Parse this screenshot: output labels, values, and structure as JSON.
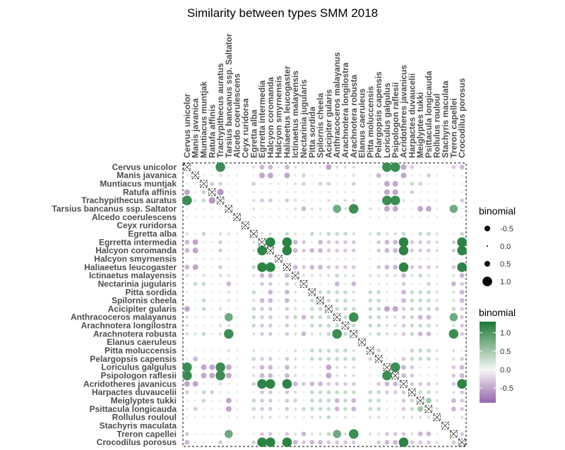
{
  "chart_data": {
    "type": "heatmap",
    "title": "Similarity between types SMM 2018",
    "species": [
      "Cervus unicolor",
      "Manis javanica",
      "Muntiacus muntjak",
      "Ratufa affinis",
      "Trachypithecus auratus",
      "Tarsius bancanus ssp. Saltator",
      "Alcedo coerulescens",
      "Ceyx ruridorsa",
      "Egretta alba",
      "Egrretta intermedia",
      "Halcyon coromanda",
      "Halcyon smyrnensis",
      "Haliaeetus leucogaster",
      "Ictinaetus malayensis",
      "Nectarinia jugularis",
      "Pitta sordida",
      "Spilornis cheela",
      "Acicipiter gularis",
      "Anthracoceros malayanus",
      "Arachnotera longilostra",
      "Arachnotera robusta",
      "Elanus caeruleus",
      "Pitta moluccensis",
      "Pelargopsis capensis",
      "Loriculus galgulus",
      "Psipologon raflesii",
      "Acridotheres javanicus",
      "Harpactes duvaucelii",
      "Meiglyptes tukki",
      "Psittacula longicauda",
      "Rollulus rouloul",
      "Stachyris maculata",
      "Treron capellei",
      "Crocodilus porosus"
    ],
    "values": [
      [
        null,
        0.1,
        0.1,
        0.1,
        1.1,
        0.1,
        0.1,
        0,
        -0.2,
        -0.4,
        -0.4,
        -0.1,
        -0.4,
        -0.2,
        0.1,
        -0.1,
        0.1,
        -0.5,
        -0.2,
        -0.2,
        -0.2,
        0,
        0.1,
        -0.1,
        1.1,
        1.1,
        -0.5,
        -0.3,
        0.1,
        -0.1,
        -0.1,
        0,
        -0.3,
        -0.4
      ],
      [
        0.1,
        null,
        0.1,
        0.1,
        0.2,
        0.1,
        0.1,
        0,
        0.1,
        -0.5,
        -0.5,
        0.1,
        -0.5,
        0.1,
        0.3,
        0.1,
        0.1,
        0.1,
        -0.1,
        0.1,
        0.2,
        0,
        0.1,
        -0.4,
        0.1,
        0.1,
        -0.5,
        0.1,
        0.1,
        -0.3,
        0.1,
        0,
        0.1,
        -0.1
      ],
      [
        0.1,
        0.1,
        null,
        -0.3,
        0.3,
        0.1,
        0.1,
        0,
        0.3,
        0.1,
        0.1,
        0.1,
        0.1,
        0.2,
        0.3,
        0.1,
        0.3,
        0.3,
        0.1,
        0.1,
        0.3,
        0,
        0.1,
        0.1,
        -0.5,
        -0.5,
        0.1,
        0.3,
        0.3,
        0.1,
        0.1,
        0,
        0.1,
        0.1
      ],
      [
        -0.5,
        0.1,
        -0.3,
        null,
        -0.6,
        0.1,
        0.1,
        0,
        0.1,
        0.1,
        0.1,
        0.1,
        0.1,
        0.1,
        0.1,
        0.1,
        0.1,
        -0.1,
        0.1,
        0.1,
        0.1,
        0,
        0.1,
        0.1,
        -0.5,
        -0.5,
        0.1,
        -0.3,
        0.1,
        0.1,
        0.1,
        0,
        0.1,
        0.1
      ],
      [
        1.1,
        0.2,
        0.3,
        -0.6,
        null,
        -0.1,
        0.1,
        0,
        -0.2,
        -0.3,
        -0.3,
        0.1,
        -0.3,
        -0.2,
        0.1,
        -0.1,
        0.1,
        -0.2,
        -0.1,
        -0.2,
        -0.2,
        0,
        0.1,
        -0.1,
        1.1,
        1.1,
        -0.2,
        -0.1,
        0.1,
        -0.1,
        -0.1,
        0,
        -0.1,
        -0.3
      ],
      [
        0.1,
        0.1,
        0.1,
        0.1,
        -0.1,
        null,
        -0.1,
        0,
        0.2,
        0.1,
        0.1,
        0.1,
        0.1,
        0.2,
        -0.4,
        0.2,
        0.2,
        0.1,
        0.8,
        0.2,
        1.1,
        0,
        0.2,
        0.1,
        -0.5,
        -0.5,
        0.1,
        0.1,
        -0.5,
        -0.5,
        0.1,
        0,
        0.8,
        0.1
      ],
      [
        0.1,
        0.1,
        0.1,
        0.1,
        0.1,
        -0.1,
        null,
        0,
        0.1,
        0.1,
        0.1,
        0.1,
        0.1,
        0.1,
        0.1,
        0.1,
        0.1,
        0.1,
        0.1,
        0.1,
        0.1,
        0,
        0.1,
        0.1,
        0.1,
        0.1,
        0.1,
        0.1,
        0.1,
        0.1,
        0.1,
        0,
        0.1,
        0.1
      ],
      [
        0,
        0,
        0,
        0,
        0,
        0,
        0,
        null,
        0,
        0,
        0,
        0,
        0,
        0,
        0,
        0,
        0,
        0,
        0,
        0,
        0,
        0,
        0,
        0,
        0,
        0,
        0,
        0,
        0,
        0,
        0,
        0,
        0,
        0
      ],
      [
        -0.2,
        0.1,
        0.3,
        0.1,
        -0.2,
        0.2,
        0.1,
        0,
        null,
        0.2,
        0.2,
        0.1,
        0.3,
        0.2,
        0.1,
        0.3,
        0.2,
        0.3,
        0.3,
        0.3,
        0.2,
        0,
        0.2,
        0.3,
        -0.2,
        -0.2,
        0.3,
        0.1,
        0.3,
        0.3,
        0.2,
        0,
        0.1,
        0.3
      ],
      [
        -0.4,
        -0.5,
        0.1,
        0.1,
        -0.3,
        0.1,
        0.1,
        0,
        0.2,
        null,
        1.2,
        0.1,
        1.2,
        -0.4,
        -0.3,
        0.1,
        -0.4,
        -0.3,
        -0.3,
        -0.3,
        -0.3,
        0,
        0.1,
        -0.3,
        -0.4,
        -0.4,
        1.2,
        -0.3,
        -0.3,
        -0.3,
        -0.2,
        0,
        -0.3,
        1.2
      ],
      [
        -0.4,
        -0.5,
        0.1,
        0.1,
        -0.3,
        0.1,
        0.1,
        0,
        0.2,
        1.2,
        null,
        0.1,
        1.2,
        -0.4,
        -0.3,
        -0.4,
        -0.4,
        -0.3,
        -0.3,
        -0.3,
        -0.3,
        0,
        0.1,
        -0.3,
        -0.4,
        -0.4,
        1.2,
        -0.3,
        -0.3,
        -0.3,
        -0.2,
        0,
        -0.3,
        1.2
      ],
      [
        -0.1,
        0.1,
        0.1,
        0.1,
        0.1,
        0.1,
        0.1,
        0,
        0.1,
        0.1,
        0.1,
        null,
        0.1,
        0.1,
        0.1,
        0.1,
        0.1,
        0.1,
        0.1,
        0.1,
        0.1,
        0,
        0.1,
        0.1,
        0.1,
        0.1,
        0.1,
        0.1,
        0.1,
        0.1,
        0.1,
        0,
        0.1,
        0.1
      ],
      [
        -0.4,
        -0.5,
        0.1,
        0.1,
        -0.3,
        0.1,
        0.1,
        0,
        0.3,
        1.2,
        1.2,
        0.1,
        null,
        -0.4,
        -0.3,
        -0.4,
        -0.4,
        -0.3,
        -0.3,
        -0.3,
        -0.3,
        0,
        0.1,
        -0.3,
        -0.4,
        -0.4,
        1.2,
        -0.3,
        -0.3,
        -0.3,
        -0.2,
        0,
        -0.3,
        1.2
      ],
      [
        -0.2,
        0.1,
        0.2,
        0.1,
        -0.2,
        0.2,
        0.1,
        0,
        0.2,
        -0.4,
        -0.4,
        0.1,
        -0.4,
        null,
        0.2,
        0.2,
        0.2,
        0.2,
        0.3,
        0.2,
        0.2,
        0,
        0.2,
        0.2,
        -0.2,
        -0.2,
        -0.4,
        0.2,
        0.3,
        0.2,
        0.1,
        0,
        0.2,
        -0.4
      ],
      [
        0.1,
        0.3,
        0.3,
        0.1,
        0.1,
        -0.4,
        0.1,
        0,
        0.1,
        -0.3,
        -0.3,
        0.1,
        -0.3,
        0.2,
        null,
        0.1,
        0.1,
        0.1,
        -0.4,
        0.1,
        -0.4,
        0,
        0.1,
        0.1,
        0.1,
        0.1,
        -0.3,
        0.1,
        0.1,
        0.3,
        0.1,
        0,
        -0.4,
        -0.3
      ],
      [
        -0.1,
        0.1,
        0.1,
        0.1,
        -0.1,
        0.2,
        0.1,
        0,
        0.3,
        0.1,
        -0.4,
        0.1,
        -0.4,
        0.2,
        0.1,
        null,
        0.3,
        0.3,
        0.3,
        0.3,
        0.2,
        0,
        0.3,
        0.3,
        -0.1,
        -0.1,
        -0.4,
        0.3,
        0.3,
        0.3,
        0.2,
        0,
        0.2,
        -0.4
      ],
      [
        0.1,
        0.1,
        0.3,
        0.1,
        0.1,
        0.2,
        0.1,
        0,
        0.2,
        -0.4,
        -0.4,
        0.1,
        -0.4,
        0.2,
        0.1,
        0.3,
        null,
        0.3,
        0.3,
        0.3,
        0.2,
        0,
        0.3,
        0.3,
        0.1,
        0.1,
        -0.4,
        0.3,
        0.3,
        0.3,
        0.2,
        0,
        0.2,
        -0.4
      ],
      [
        -0.5,
        0.1,
        0.3,
        -0.1,
        -0.2,
        0.1,
        0.1,
        0,
        0.3,
        -0.3,
        -0.3,
        0.1,
        -0.3,
        0.2,
        0.1,
        0.3,
        0.3,
        null,
        0.3,
        0.3,
        0.3,
        0,
        0.3,
        0.3,
        -0.5,
        -0.5,
        -0.3,
        0.3,
        0.3,
        0.3,
        0.3,
        0,
        0.3,
        -0.3
      ],
      [
        -0.2,
        -0.1,
        0.1,
        0.1,
        -0.1,
        0.8,
        0.1,
        0,
        0.3,
        -0.3,
        -0.3,
        0.1,
        -0.3,
        0.3,
        -0.4,
        0.3,
        0.3,
        0.3,
        null,
        0.3,
        1.1,
        0,
        0.3,
        0.3,
        -0.2,
        -0.2,
        -0.3,
        0.3,
        -0.4,
        -0.4,
        0.1,
        0,
        0.8,
        -0.3
      ],
      [
        -0.2,
        0.1,
        0.1,
        0.1,
        -0.2,
        0.2,
        0.1,
        0,
        0.3,
        -0.3,
        -0.3,
        0.1,
        -0.3,
        0.2,
        0.1,
        0.3,
        0.3,
        0.3,
        0.3,
        null,
        0.3,
        0,
        0.3,
        0.3,
        -0.2,
        -0.2,
        -0.3,
        0.3,
        0.3,
        0.3,
        0.2,
        0,
        0.2,
        -0.3
      ],
      [
        -0.2,
        0.2,
        0.3,
        0.1,
        -0.2,
        1.1,
        0.1,
        0,
        0.2,
        -0.3,
        -0.3,
        0.1,
        -0.3,
        0.2,
        -0.4,
        0.2,
        0.2,
        0.3,
        1.1,
        0.3,
        null,
        0,
        0.2,
        0.3,
        -0.2,
        -0.2,
        -0.3,
        0.3,
        -0.4,
        -0.4,
        0.1,
        0,
        1.1,
        -0.3
      ],
      [
        0,
        0,
        0,
        0,
        0,
        0,
        0,
        0,
        0,
        0,
        0,
        0,
        0,
        0,
        0,
        0,
        0,
        0,
        0,
        0,
        0,
        null,
        0,
        0,
        0,
        0,
        0,
        0,
        0,
        0,
        0,
        0,
        0,
        0
      ],
      [
        0.1,
        0.1,
        0.1,
        0.1,
        0.1,
        0.2,
        0.1,
        0,
        0.2,
        0.1,
        0.1,
        0.1,
        0.1,
        0.2,
        0.1,
        0.3,
        0.3,
        0.3,
        0.3,
        0.3,
        0.2,
        0,
        null,
        0.3,
        0.1,
        0.1,
        0.1,
        0.3,
        0.3,
        0.3,
        0.2,
        0,
        0.2,
        0.1
      ],
      [
        -0.1,
        -0.4,
        0.1,
        0.1,
        -0.1,
        0.1,
        0.1,
        0,
        0.3,
        -0.3,
        -0.3,
        0.1,
        -0.3,
        0.2,
        0.1,
        0.3,
        0.3,
        0.3,
        0.3,
        0.3,
        0.3,
        0,
        0.3,
        null,
        -0.1,
        -0.1,
        -0.3,
        0.3,
        0.3,
        0.3,
        0.2,
        0,
        0.2,
        -0.3
      ],
      [
        1.1,
        0.1,
        -0.5,
        -0.5,
        1.1,
        -0.5,
        0.1,
        0,
        -0.2,
        -0.4,
        -0.4,
        0.1,
        -0.4,
        -0.2,
        0.1,
        -0.1,
        0.1,
        -0.5,
        -0.2,
        -0.2,
        -0.2,
        0,
        0.1,
        -0.1,
        null,
        1.1,
        -0.4,
        -0.3,
        0.1,
        -0.1,
        -0.1,
        0,
        -0.3,
        -0.4
      ],
      [
        1.1,
        0.1,
        -0.5,
        -0.5,
        1.1,
        -0.5,
        0.1,
        0,
        -0.2,
        -0.4,
        -0.4,
        0.1,
        -0.4,
        -0.2,
        0.1,
        -0.1,
        0.1,
        -0.5,
        -0.2,
        -0.2,
        -0.2,
        0,
        0.1,
        -0.1,
        1.1,
        null,
        -0.4,
        -0.3,
        0.1,
        -0.1,
        -0.1,
        0,
        -0.3,
        -0.4
      ],
      [
        -0.5,
        -0.5,
        0.1,
        0.1,
        -0.2,
        0.1,
        0.1,
        0,
        0.3,
        1.2,
        1.2,
        0.1,
        1.2,
        -0.4,
        -0.3,
        -0.4,
        -0.4,
        -0.3,
        -0.3,
        -0.3,
        -0.3,
        0,
        0.1,
        -0.3,
        -0.4,
        -0.4,
        null,
        -0.3,
        -0.3,
        -0.3,
        -0.2,
        0,
        -0.3,
        1.2
      ],
      [
        -0.3,
        0.1,
        0.3,
        -0.3,
        -0.1,
        0.1,
        0.1,
        0,
        0.1,
        -0.3,
        -0.3,
        0.1,
        -0.3,
        0.2,
        0.1,
        0.3,
        0.3,
        0.3,
        0.3,
        0.3,
        0.3,
        0,
        0.3,
        0.3,
        -0.3,
        -0.3,
        -0.3,
        null,
        0.3,
        0.3,
        0.2,
        0,
        0.2,
        -0.3
      ],
      [
        0.1,
        0.1,
        0.3,
        0.1,
        0.1,
        -0.5,
        0.1,
        0,
        0.3,
        -0.3,
        -0.3,
        0.1,
        -0.3,
        0.3,
        0.1,
        0.3,
        0.3,
        0.3,
        -0.4,
        0.3,
        -0.4,
        0,
        0.3,
        0.3,
        0.1,
        0.1,
        -0.3,
        0.3,
        null,
        0.5,
        0.2,
        0,
        -0.4,
        -0.3
      ],
      [
        -0.1,
        -0.3,
        0.1,
        0.1,
        -0.1,
        -0.5,
        0.1,
        0,
        0.3,
        -0.3,
        -0.3,
        0.1,
        -0.3,
        0.2,
        0.3,
        0.3,
        0.3,
        0.3,
        -0.4,
        0.3,
        -0.4,
        0,
        0.3,
        0.3,
        -0.1,
        -0.1,
        -0.3,
        0.3,
        0.5,
        null,
        0.2,
        0,
        -0.4,
        -0.3
      ],
      [
        -0.1,
        0.1,
        0.1,
        0.1,
        -0.1,
        0.1,
        0.1,
        0,
        0.2,
        -0.2,
        -0.2,
        0.1,
        -0.2,
        0.1,
        0.1,
        0.2,
        0.2,
        0.3,
        0.1,
        0.2,
        0.1,
        0,
        0.2,
        0.2,
        -0.1,
        -0.1,
        -0.2,
        0.2,
        0.2,
        0.2,
        null,
        0,
        0.1,
        -0.2
      ],
      [
        0,
        0,
        0,
        0,
        0,
        0,
        0,
        0,
        0,
        0,
        0,
        0,
        0,
        0,
        0,
        0,
        0,
        0,
        0,
        0,
        0,
        0,
        0,
        0,
        0,
        0,
        0,
        0,
        0,
        0,
        0,
        null,
        0,
        0
      ],
      [
        -0.3,
        0.1,
        0.1,
        0.1,
        -0.1,
        0.8,
        0.1,
        0,
        0.1,
        -0.3,
        -0.3,
        0.1,
        -0.3,
        0.2,
        -0.4,
        0.2,
        0.2,
        0.3,
        0.8,
        0.2,
        1.1,
        0,
        0.2,
        0.2,
        -0.3,
        -0.3,
        -0.3,
        0.2,
        -0.4,
        -0.4,
        0.1,
        0,
        null,
        -0.3
      ],
      [
        -0.4,
        -0.1,
        0.1,
        0.1,
        -0.3,
        0.1,
        0.1,
        0,
        0.3,
        1.2,
        1.2,
        0.1,
        1.2,
        -0.4,
        -0.3,
        -0.4,
        -0.4,
        -0.3,
        -0.3,
        -0.3,
        -0.3,
        0,
        0.1,
        -0.3,
        -0.4,
        -0.4,
        1.2,
        -0.3,
        -0.3,
        -0.3,
        -0.2,
        0,
        -0.3,
        null
      ]
    ],
    "size_legend": {
      "title": "binomial",
      "values": [
        -0.5,
        0.0,
        0.5,
        1.0
      ],
      "labels": [
        "-0.5",
        "0.0",
        "0.5",
        "1.0"
      ]
    },
    "color_legend": {
      "title": "binomial",
      "ticks": [
        1.0,
        0.5,
        0.0,
        -0.5
      ],
      "labels": [
        "1.0",
        "0.5",
        "0.0",
        "-0.5"
      ],
      "range": [
        -0.9,
        1.3
      ]
    },
    "colors": {
      "low": "#9566ad",
      "mid": "#f7f7f7",
      "high": "#1a7a35"
    },
    "grid": false,
    "legend_position": "right"
  }
}
